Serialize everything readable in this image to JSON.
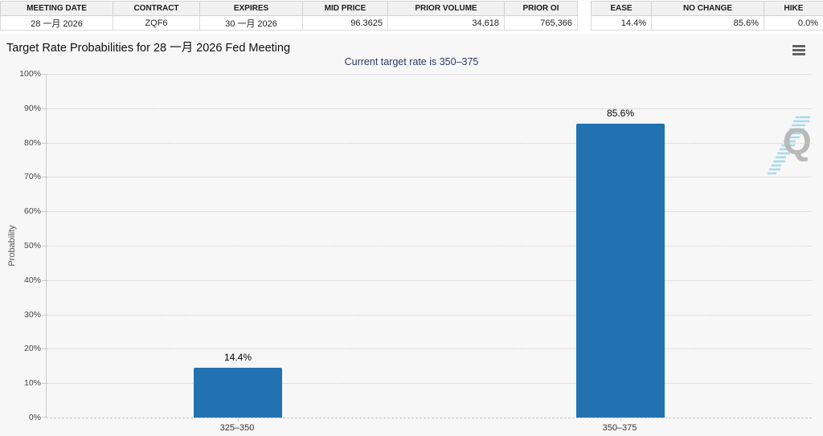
{
  "contract_table": {
    "headers": [
      "MEETING DATE",
      "CONTRACT",
      "EXPIRES",
      "MID PRICE",
      "PRIOR VOLUME",
      "PRIOR OI"
    ],
    "values": [
      "28 一月 2026",
      "ZQF6",
      "30 一月 2026",
      "96.3625",
      "34,618",
      "765,366"
    ]
  },
  "action_table": {
    "headers": [
      "EASE",
      "NO CHANGE",
      "HIKE"
    ],
    "values": [
      "14.4%",
      "85.6%",
      "0.0%"
    ]
  },
  "chart": {
    "title": "Target Rate Probabilities for 28 一月 2026 Fed Meeting",
    "subtitle": "Current target rate is 350–375",
    "menu_icon": "hamburger-menu-icon",
    "watermark_icon": "quikstrike-q-logo",
    "watermark_letter": "Q"
  },
  "chart_data": {
    "type": "bar",
    "title": "Target Rate Probabilities for 28 一月 2026 Fed Meeting",
    "subtitle": "Current target rate is 350–375",
    "categories": [
      "325–350",
      "350–375"
    ],
    "values": [
      14.4,
      85.6
    ],
    "data_labels": [
      "14.4%",
      "85.6%"
    ],
    "xlabel": "",
    "ylabel": "Probability",
    "ylim": [
      0,
      100
    ],
    "yticks": [
      0,
      10,
      20,
      30,
      40,
      50,
      60,
      70,
      80,
      90,
      100
    ],
    "ytick_suffix": "%",
    "grid": "horizontal-dotted",
    "legend": "none",
    "bar_color": "#2272b1"
  },
  "colors": {
    "bar": "#2272b1",
    "subtitle_text": "#2c3a6b",
    "chart_background": "#f7f7f7",
    "table_header_background": "#f1f1f1"
  }
}
